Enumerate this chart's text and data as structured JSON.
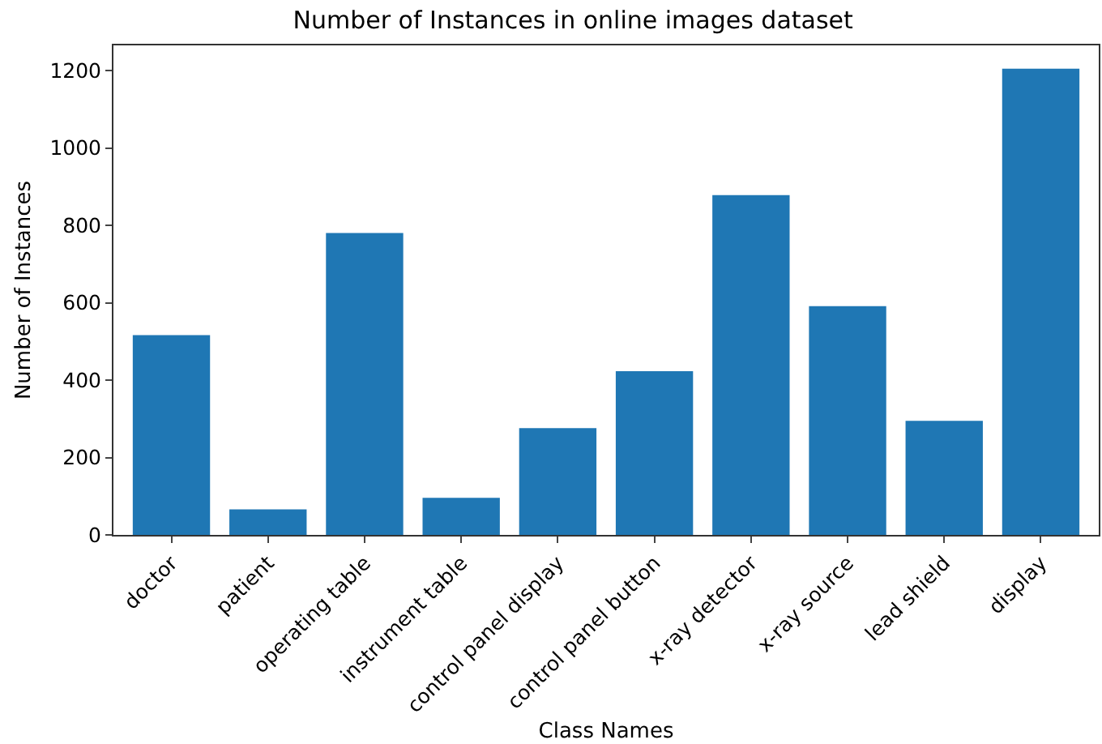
{
  "chart_data": {
    "type": "bar",
    "title": "Number of Instances in online images dataset",
    "xlabel": "Class Names",
    "ylabel": "Number of Instances",
    "categories": [
      "doctor",
      "patient",
      "operating table",
      "instrument table",
      "control panel display",
      "control panel button",
      "x-ray detector",
      "x-ray source",
      "lead shield",
      "display"
    ],
    "values": [
      516,
      66,
      780,
      96,
      276,
      423,
      878,
      591,
      295,
      1205
    ],
    "color": "#1f77b4",
    "ylim": [
      0,
      1265
    ],
    "yticks": [
      0,
      200,
      400,
      600,
      800,
      1000,
      1200
    ],
    "grid": false
  }
}
